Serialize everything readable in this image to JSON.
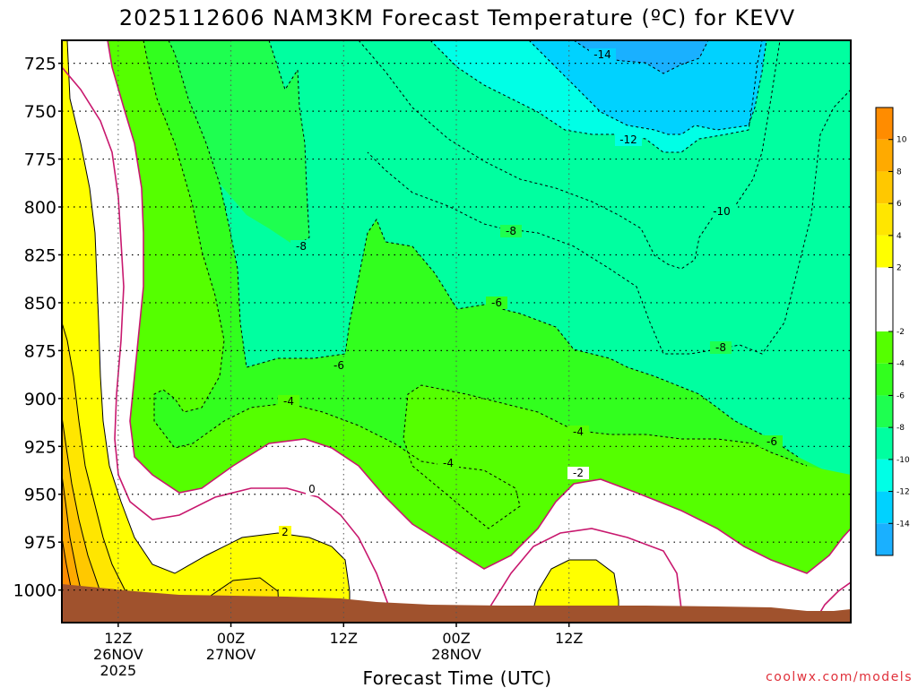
{
  "chart_data": {
    "type": "heatmap",
    "title": "2025112606 NAM3KM Forecast Temperature (ºC) for KEVV",
    "xlabel": "Forecast Time (UTC)",
    "ylabel": "",
    "credit": "coolwx.com/models",
    "x_range_hours": [
      0,
      84
    ],
    "x_ticks": [
      {
        "hour": 6,
        "time": "12Z",
        "date": "26NOV",
        "year": "2025"
      },
      {
        "hour": 18,
        "time": "00Z",
        "date": "27NOV",
        "year": ""
      },
      {
        "hour": 30,
        "time": "12Z",
        "date": "",
        "year": ""
      },
      {
        "hour": 42,
        "time": "00Z",
        "date": "28NOV",
        "year": ""
      },
      {
        "hour": 54,
        "time": "12Z",
        "date": "",
        "year": ""
      }
    ],
    "y_ticks_hpa": [
      725,
      750,
      775,
      800,
      825,
      850,
      875,
      900,
      925,
      950,
      975,
      1000
    ],
    "ylim_hpa": [
      1017,
      713
    ],
    "grid": true,
    "legend_position": "right",
    "colorbar": {
      "bands": [
        {
          "from": -16,
          "to": -14,
          "color": "#1ab0ff"
        },
        {
          "from": -14,
          "to": -12,
          "color": "#00d2ff"
        },
        {
          "from": -12,
          "to": -10,
          "color": "#00ffe6"
        },
        {
          "from": -10,
          "to": -8,
          "color": "#00ffa0"
        },
        {
          "from": -8,
          "to": -6,
          "color": "#1eff50"
        },
        {
          "from": -6,
          "to": -4,
          "color": "#32ff1e"
        },
        {
          "from": -4,
          "to": -2,
          "color": "#55ff00"
        },
        {
          "from": -2,
          "to": 2,
          "color": "#ffffff"
        },
        {
          "from": 2,
          "to": 4,
          "color": "#ffff00"
        },
        {
          "from": 4,
          "to": 6,
          "color": "#ffe600"
        },
        {
          "from": 6,
          "to": 8,
          "color": "#ffc800"
        },
        {
          "from": 8,
          "to": 10,
          "color": "#ffaa00"
        },
        {
          "from": 10,
          "to": 12,
          "color": "#ff8c00"
        }
      ],
      "tick_labels": [
        "10",
        "8",
        "6",
        "4",
        "2",
        "-2",
        "-4",
        "-6",
        "-8",
        "-10",
        "-12",
        "-14"
      ]
    },
    "contour_labels": [
      "-14",
      "-12",
      "-10",
      "-8",
      "-8",
      "-8",
      "-6",
      "-6",
      "-6",
      "-4",
      "-4",
      "-4",
      "-2",
      "0",
      "2"
    ],
    "colors": {
      "ground": "#a0522d",
      "freezing_line": "#c8186e",
      "frame": "#000000"
    }
  }
}
